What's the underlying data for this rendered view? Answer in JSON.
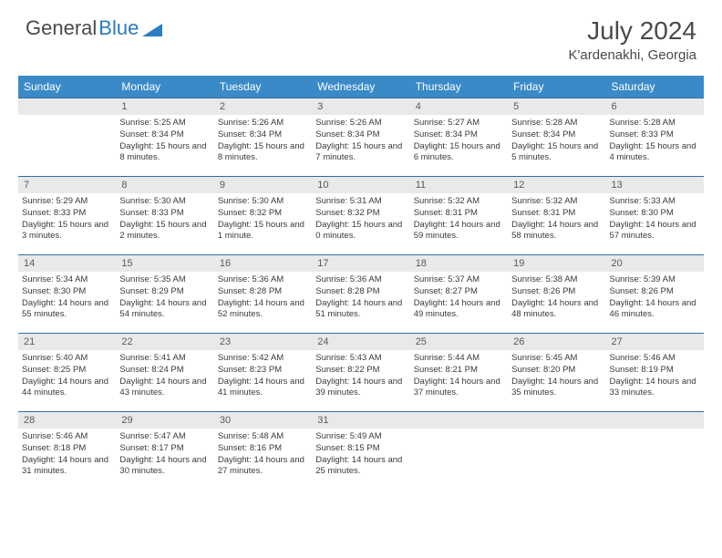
{
  "brand": {
    "part1": "General",
    "part2": "Blue"
  },
  "title": {
    "month": "July 2024",
    "location": "K'ardenakhi, Georgia"
  },
  "colors": {
    "header_bg": "#3a8ac8",
    "header_text": "#ffffff",
    "daynum_bg": "#e9e9e9",
    "row_border": "#2f6fa8",
    "text": "#3a3a3a",
    "brand_blue": "#2b7cc0"
  },
  "weekdays": [
    "Sunday",
    "Monday",
    "Tuesday",
    "Wednesday",
    "Thursday",
    "Friday",
    "Saturday"
  ],
  "weeks": [
    [
      {
        "day": "",
        "sunrise": "",
        "sunset": "",
        "daylight": "",
        "empty": true
      },
      {
        "day": "1",
        "sunrise": "5:25 AM",
        "sunset": "8:34 PM",
        "daylight": "15 hours and 8 minutes."
      },
      {
        "day": "2",
        "sunrise": "5:26 AM",
        "sunset": "8:34 PM",
        "daylight": "15 hours and 8 minutes."
      },
      {
        "day": "3",
        "sunrise": "5:26 AM",
        "sunset": "8:34 PM",
        "daylight": "15 hours and 7 minutes."
      },
      {
        "day": "4",
        "sunrise": "5:27 AM",
        "sunset": "8:34 PM",
        "daylight": "15 hours and 6 minutes."
      },
      {
        "day": "5",
        "sunrise": "5:28 AM",
        "sunset": "8:34 PM",
        "daylight": "15 hours and 5 minutes."
      },
      {
        "day": "6",
        "sunrise": "5:28 AM",
        "sunset": "8:33 PM",
        "daylight": "15 hours and 4 minutes."
      }
    ],
    [
      {
        "day": "7",
        "sunrise": "5:29 AM",
        "sunset": "8:33 PM",
        "daylight": "15 hours and 3 minutes."
      },
      {
        "day": "8",
        "sunrise": "5:30 AM",
        "sunset": "8:33 PM",
        "daylight": "15 hours and 2 minutes."
      },
      {
        "day": "9",
        "sunrise": "5:30 AM",
        "sunset": "8:32 PM",
        "daylight": "15 hours and 1 minute."
      },
      {
        "day": "10",
        "sunrise": "5:31 AM",
        "sunset": "8:32 PM",
        "daylight": "15 hours and 0 minutes."
      },
      {
        "day": "11",
        "sunrise": "5:32 AM",
        "sunset": "8:31 PM",
        "daylight": "14 hours and 59 minutes."
      },
      {
        "day": "12",
        "sunrise": "5:32 AM",
        "sunset": "8:31 PM",
        "daylight": "14 hours and 58 minutes."
      },
      {
        "day": "13",
        "sunrise": "5:33 AM",
        "sunset": "8:30 PM",
        "daylight": "14 hours and 57 minutes."
      }
    ],
    [
      {
        "day": "14",
        "sunrise": "5:34 AM",
        "sunset": "8:30 PM",
        "daylight": "14 hours and 55 minutes."
      },
      {
        "day": "15",
        "sunrise": "5:35 AM",
        "sunset": "8:29 PM",
        "daylight": "14 hours and 54 minutes."
      },
      {
        "day": "16",
        "sunrise": "5:36 AM",
        "sunset": "8:28 PM",
        "daylight": "14 hours and 52 minutes."
      },
      {
        "day": "17",
        "sunrise": "5:36 AM",
        "sunset": "8:28 PM",
        "daylight": "14 hours and 51 minutes."
      },
      {
        "day": "18",
        "sunrise": "5:37 AM",
        "sunset": "8:27 PM",
        "daylight": "14 hours and 49 minutes."
      },
      {
        "day": "19",
        "sunrise": "5:38 AM",
        "sunset": "8:26 PM",
        "daylight": "14 hours and 48 minutes."
      },
      {
        "day": "20",
        "sunrise": "5:39 AM",
        "sunset": "8:26 PM",
        "daylight": "14 hours and 46 minutes."
      }
    ],
    [
      {
        "day": "21",
        "sunrise": "5:40 AM",
        "sunset": "8:25 PM",
        "daylight": "14 hours and 44 minutes."
      },
      {
        "day": "22",
        "sunrise": "5:41 AM",
        "sunset": "8:24 PM",
        "daylight": "14 hours and 43 minutes."
      },
      {
        "day": "23",
        "sunrise": "5:42 AM",
        "sunset": "8:23 PM",
        "daylight": "14 hours and 41 minutes."
      },
      {
        "day": "24",
        "sunrise": "5:43 AM",
        "sunset": "8:22 PM",
        "daylight": "14 hours and 39 minutes."
      },
      {
        "day": "25",
        "sunrise": "5:44 AM",
        "sunset": "8:21 PM",
        "daylight": "14 hours and 37 minutes."
      },
      {
        "day": "26",
        "sunrise": "5:45 AM",
        "sunset": "8:20 PM",
        "daylight": "14 hours and 35 minutes."
      },
      {
        "day": "27",
        "sunrise": "5:46 AM",
        "sunset": "8:19 PM",
        "daylight": "14 hours and 33 minutes."
      }
    ],
    [
      {
        "day": "28",
        "sunrise": "5:46 AM",
        "sunset": "8:18 PM",
        "daylight": "14 hours and 31 minutes."
      },
      {
        "day": "29",
        "sunrise": "5:47 AM",
        "sunset": "8:17 PM",
        "daylight": "14 hours and 30 minutes."
      },
      {
        "day": "30",
        "sunrise": "5:48 AM",
        "sunset": "8:16 PM",
        "daylight": "14 hours and 27 minutes."
      },
      {
        "day": "31",
        "sunrise": "5:49 AM",
        "sunset": "8:15 PM",
        "daylight": "14 hours and 25 minutes."
      },
      {
        "day": "",
        "sunrise": "",
        "sunset": "",
        "daylight": "",
        "empty": true
      },
      {
        "day": "",
        "sunrise": "",
        "sunset": "",
        "daylight": "",
        "empty": true
      },
      {
        "day": "",
        "sunrise": "",
        "sunset": "",
        "daylight": "",
        "empty": true
      }
    ]
  ],
  "labels": {
    "sunrise": "Sunrise:",
    "sunset": "Sunset:",
    "daylight": "Daylight:"
  }
}
